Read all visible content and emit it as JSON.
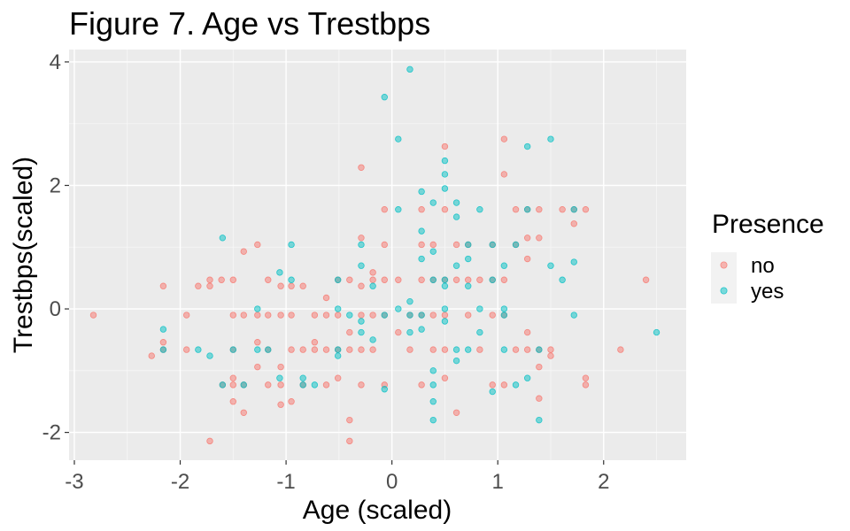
{
  "chart_data": {
    "type": "scatter",
    "title": "Figure 7. Age vs Trestbps",
    "xlabel": "Age (scaled)",
    "ylabel": "Trestbps(scaled)",
    "xlim": [
      -3.05,
      2.78
    ],
    "ylim": [
      -2.45,
      4.2
    ],
    "x_ticks": [
      -3,
      -2,
      -1,
      0,
      1,
      2
    ],
    "x_tick_labels": [
      "-3",
      "-2",
      "-1",
      "0",
      "1",
      "2"
    ],
    "y_ticks": [
      -2,
      0,
      2,
      4
    ],
    "y_tick_labels": [
      "-2",
      "0",
      "2",
      "4"
    ],
    "grid": true,
    "legend": {
      "title": "Presence",
      "position": "right",
      "entries": [
        "no",
        "yes"
      ]
    },
    "point_opacity": 0.5,
    "series": [
      {
        "name": "no",
        "color": "#F8766D",
        "points": [
          [
            -2.82,
            -0.1
          ],
          [
            -2.27,
            -0.76
          ],
          [
            -2.16,
            0.37
          ],
          [
            -2.16,
            -0.54
          ],
          [
            -2.16,
            -0.66
          ],
          [
            -1.94,
            -0.1
          ],
          [
            -1.94,
            -0.66
          ],
          [
            -1.83,
            0.37
          ],
          [
            -1.72,
            0.47
          ],
          [
            -1.72,
            0.37
          ],
          [
            -1.72,
            -2.14
          ],
          [
            -1.61,
            0.47
          ],
          [
            -1.6,
            -1.23
          ],
          [
            -1.5,
            0.47
          ],
          [
            -1.5,
            -0.1
          ],
          [
            -1.5,
            -0.66
          ],
          [
            -1.5,
            -1.12
          ],
          [
            -1.5,
            -1.23
          ],
          [
            -1.5,
            -1.5
          ],
          [
            -1.4,
            0.93
          ],
          [
            -1.4,
            -0.1
          ],
          [
            -1.4,
            -1.23
          ],
          [
            -1.4,
            -1.68
          ],
          [
            -1.27,
            1.04
          ],
          [
            -1.27,
            -0.1
          ],
          [
            -1.27,
            -0.54
          ],
          [
            -1.27,
            -0.94
          ],
          [
            -1.17,
            0.47
          ],
          [
            -1.17,
            -0.1
          ],
          [
            -1.17,
            -0.66
          ],
          [
            -1.17,
            -1.23
          ],
          [
            -1.05,
            0.37
          ],
          [
            -1.05,
            -0.1
          ],
          [
            -1.05,
            -0.94
          ],
          [
            -1.05,
            -1.23
          ],
          [
            -1.05,
            -1.55
          ],
          [
            -0.95,
            0.37
          ],
          [
            -0.95,
            -0.1
          ],
          [
            -0.95,
            -0.66
          ],
          [
            -0.95,
            -1.5
          ],
          [
            -0.84,
            0.37
          ],
          [
            -0.84,
            -0.66
          ],
          [
            -0.84,
            -1.23
          ],
          [
            -0.73,
            -0.1
          ],
          [
            -0.73,
            -0.54
          ],
          [
            -0.73,
            -0.66
          ],
          [
            -0.62,
            0.18
          ],
          [
            -0.62,
            -0.1
          ],
          [
            -0.62,
            -0.66
          ],
          [
            -0.62,
            -1.23
          ],
          [
            -0.51,
            0.47
          ],
          [
            -0.51,
            -0.1
          ],
          [
            -0.51,
            -0.66
          ],
          [
            -0.51,
            -1.12
          ],
          [
            -0.4,
            0.47
          ],
          [
            -0.4,
            -0.38
          ],
          [
            -0.4,
            -0.66
          ],
          [
            -0.4,
            -1.8
          ],
          [
            -0.4,
            -2.14
          ],
          [
            -0.29,
            2.29
          ],
          [
            -0.29,
            1.15
          ],
          [
            -0.29,
            0.37
          ],
          [
            -0.29,
            -0.1
          ],
          [
            -0.29,
            -0.66
          ],
          [
            -0.29,
            -1.23
          ],
          [
            -0.18,
            0.59
          ],
          [
            -0.18,
            0.47
          ],
          [
            -0.18,
            -0.1
          ],
          [
            -0.18,
            -0.66
          ],
          [
            -0.07,
            1.61
          ],
          [
            -0.07,
            1.04
          ],
          [
            -0.07,
            0.47
          ],
          [
            -0.07,
            -0.1
          ],
          [
            -0.07,
            -1.23
          ],
          [
            0.06,
            0.47
          ],
          [
            0.06,
            -0.38
          ],
          [
            0.17,
            -0.1
          ],
          [
            0.17,
            -0.66
          ],
          [
            0.28,
            1.61
          ],
          [
            0.28,
            1.04
          ],
          [
            0.28,
            0.47
          ],
          [
            0.28,
            -0.1
          ],
          [
            0.28,
            -1.23
          ],
          [
            0.39,
            1.04
          ],
          [
            0.39,
            0.47
          ],
          [
            0.39,
            -0.1
          ],
          [
            0.39,
            -0.66
          ],
          [
            0.5,
            2.63
          ],
          [
            0.5,
            1.61
          ],
          [
            0.5,
            0.47
          ],
          [
            0.5,
            -0.1
          ],
          [
            0.5,
            -0.66
          ],
          [
            0.5,
            -1.12
          ],
          [
            0.61,
            1.04
          ],
          [
            0.61,
            0.47
          ],
          [
            0.61,
            -1.68
          ],
          [
            0.72,
            1.04
          ],
          [
            0.72,
            0.47
          ],
          [
            0.72,
            -0.1
          ],
          [
            0.83,
            0.47
          ],
          [
            0.83,
            -0.66
          ],
          [
            0.95,
            1.04
          ],
          [
            0.95,
            0.47
          ],
          [
            0.95,
            -0.1
          ],
          [
            0.95,
            -1.23
          ],
          [
            1.06,
            2.75
          ],
          [
            1.06,
            2.18
          ],
          [
            1.06,
            0.47
          ],
          [
            1.06,
            -0.1
          ],
          [
            1.06,
            -1.23
          ],
          [
            1.17,
            1.61
          ],
          [
            1.17,
            1.04
          ],
          [
            1.17,
            -0.66
          ],
          [
            1.28,
            1.61
          ],
          [
            1.28,
            1.15
          ],
          [
            1.28,
            0.81
          ],
          [
            1.28,
            -0.38
          ],
          [
            1.28,
            -0.66
          ],
          [
            1.39,
            1.61
          ],
          [
            1.39,
            1.15
          ],
          [
            1.39,
            -0.66
          ],
          [
            1.39,
            -0.94
          ],
          [
            1.39,
            -1.45
          ],
          [
            1.5,
            -0.66
          ],
          [
            1.5,
            -0.76
          ],
          [
            1.61,
            1.61
          ],
          [
            1.72,
            1.61
          ],
          [
            1.72,
            1.38
          ],
          [
            1.83,
            1.61
          ],
          [
            1.83,
            -1.12
          ],
          [
            1.83,
            -1.23
          ],
          [
            2.16,
            -0.66
          ],
          [
            2.4,
            0.47
          ]
        ]
      },
      {
        "name": "yes",
        "color": "#00BFC4",
        "points": [
          [
            -2.16,
            -0.33
          ],
          [
            -2.16,
            -0.66
          ],
          [
            -1.83,
            -0.66
          ],
          [
            -1.72,
            -0.76
          ],
          [
            -1.6,
            1.15
          ],
          [
            -1.6,
            -1.23
          ],
          [
            -1.5,
            -0.66
          ],
          [
            -1.4,
            -1.23
          ],
          [
            -1.27,
            0.0
          ],
          [
            -1.27,
            -0.66
          ],
          [
            -1.17,
            -0.66
          ],
          [
            -1.06,
            0.59
          ],
          [
            -1.06,
            -1.12
          ],
          [
            -0.95,
            1.04
          ],
          [
            -0.95,
            0.47
          ],
          [
            -0.84,
            -1.12
          ],
          [
            -0.84,
            -1.23
          ],
          [
            -0.73,
            -1.23
          ],
          [
            -0.51,
            -0.66
          ],
          [
            -0.51,
            -0.76
          ],
          [
            -0.51,
            0.47
          ],
          [
            -0.51,
            0.0
          ],
          [
            -0.4,
            -0.1
          ],
          [
            -0.29,
            1.04
          ],
          [
            -0.29,
            0.7
          ],
          [
            -0.29,
            -0.2
          ],
          [
            -0.29,
            -0.38
          ],
          [
            -0.18,
            -0.5
          ],
          [
            -0.18,
            0.37
          ],
          [
            -0.07,
            3.43
          ],
          [
            -0.07,
            -0.1
          ],
          [
            -0.07,
            -1.3
          ],
          [
            0.06,
            2.75
          ],
          [
            0.06,
            1.61
          ],
          [
            0.06,
            0.0
          ],
          [
            0.17,
            3.88
          ],
          [
            0.17,
            0.12
          ],
          [
            0.17,
            -0.1
          ],
          [
            0.17,
            -0.38
          ],
          [
            0.28,
            1.9
          ],
          [
            0.28,
            1.26
          ],
          [
            0.28,
            0.81
          ],
          [
            0.28,
            -0.1
          ],
          [
            0.28,
            -0.33
          ],
          [
            0.39,
            1.72
          ],
          [
            0.39,
            0.93
          ],
          [
            0.39,
            0.47
          ],
          [
            0.39,
            -1.0
          ],
          [
            0.39,
            -1.23
          ],
          [
            0.39,
            -1.5
          ],
          [
            0.39,
            -1.8
          ],
          [
            0.5,
            2.4
          ],
          [
            0.5,
            2.18
          ],
          [
            0.5,
            1.95
          ],
          [
            0.5,
            0.47
          ],
          [
            0.5,
            0.37
          ],
          [
            0.5,
            0.0
          ],
          [
            0.5,
            -0.2
          ],
          [
            0.61,
            1.72
          ],
          [
            0.61,
            1.49
          ],
          [
            0.61,
            0.7
          ],
          [
            0.61,
            -0.66
          ],
          [
            0.61,
            -0.84
          ],
          [
            0.72,
            1.04
          ],
          [
            0.72,
            0.81
          ],
          [
            0.72,
            0.37
          ],
          [
            0.72,
            -0.66
          ],
          [
            0.83,
            1.61
          ],
          [
            0.83,
            0.0
          ],
          [
            0.83,
            -0.38
          ],
          [
            0.95,
            1.04
          ],
          [
            0.95,
            0.47
          ],
          [
            0.95,
            -1.34
          ],
          [
            1.06,
            0.7
          ],
          [
            1.06,
            0.0
          ],
          [
            1.06,
            -0.1
          ],
          [
            1.06,
            -0.66
          ],
          [
            1.17,
            1.04
          ],
          [
            1.17,
            -1.23
          ],
          [
            1.28,
            2.63
          ],
          [
            1.28,
            1.61
          ],
          [
            1.28,
            -1.12
          ],
          [
            1.39,
            -0.66
          ],
          [
            1.39,
            -1.8
          ],
          [
            1.5,
            2.75
          ],
          [
            1.5,
            0.7
          ],
          [
            1.61,
            0.47
          ],
          [
            1.72,
            1.61
          ],
          [
            1.72,
            0.76
          ],
          [
            1.72,
            -0.1
          ],
          [
            2.5,
            -0.38
          ]
        ]
      }
    ]
  }
}
